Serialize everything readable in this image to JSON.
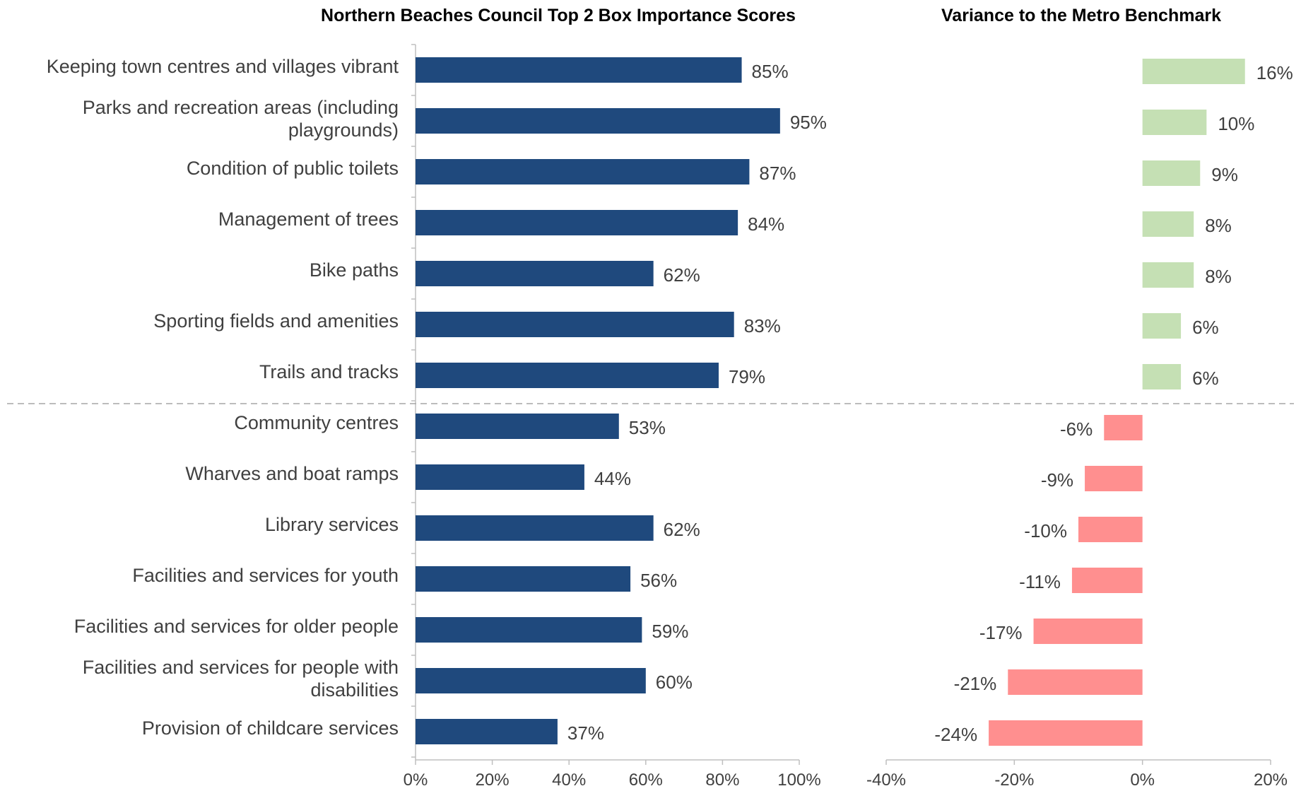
{
  "colors": {
    "importance_bar": "#1f497d",
    "variance_positive": "#c5e0b4",
    "variance_negative": "#ff8f8f",
    "axis": "#bfbfbf",
    "divider": "#a6a6a6",
    "text": "#404040"
  },
  "chart_data": [
    {
      "type": "bar",
      "orientation": "horizontal",
      "title": "Northern Beaches Council Top 2 Box Importance Scores",
      "categories": [
        "Keeping town centres and villages vibrant",
        "Parks and recreation areas (including playgrounds)",
        "Condition of public toilets",
        "Management of trees",
        "Bike paths",
        "Sporting fields and amenities",
        "Trails and tracks",
        "Community centres",
        "Wharves and boat ramps",
        "Library services",
        "Facilities and services for youth",
        "Facilities and services for older people",
        "Facilities and services for people with disabilities",
        "Provision of childcare services"
      ],
      "category_lines": [
        [
          "Keeping town centres and villages vibrant"
        ],
        [
          "Parks and recreation areas (including",
          "playgrounds)"
        ],
        [
          "Condition of public toilets"
        ],
        [
          "Management of trees"
        ],
        [
          "Bike paths"
        ],
        [
          "Sporting fields and amenities"
        ],
        [
          "Trails and tracks"
        ],
        [
          "Community centres"
        ],
        [
          "Wharves and boat ramps"
        ],
        [
          "Library services"
        ],
        [
          "Facilities and services for youth"
        ],
        [
          "Facilities and services for older people"
        ],
        [
          "Facilities and services for people with",
          "disabilities"
        ],
        [
          "Provision of childcare services"
        ]
      ],
      "values": [
        85,
        95,
        87,
        84,
        62,
        83,
        79,
        53,
        44,
        62,
        56,
        59,
        60,
        37
      ],
      "value_labels": [
        "85%",
        "95%",
        "87%",
        "84%",
        "62%",
        "83%",
        "79%",
        "53%",
        "44%",
        "62%",
        "56%",
        "59%",
        "60%",
        "37%"
      ],
      "xlim": [
        0,
        100
      ],
      "xticks": [
        0,
        20,
        40,
        60,
        80,
        100
      ],
      "xtick_labels": [
        "0%",
        "20%",
        "40%",
        "60%",
        "80%",
        "100%"
      ],
      "grid": false
    },
    {
      "type": "bar",
      "orientation": "horizontal",
      "title": "Variance to the Metro Benchmark",
      "values": [
        16,
        10,
        9,
        8,
        8,
        6,
        6,
        -6,
        -9,
        -10,
        -11,
        -17,
        -21,
        -24
      ],
      "value_labels": [
        "16%",
        "10%",
        "9%",
        "8%",
        "8%",
        "6%",
        "6%",
        "-6%",
        "-9%",
        "-10%",
        "-11%",
        "-17%",
        "-21%",
        "-24%"
      ],
      "xlim": [
        -40,
        20
      ],
      "xticks": [
        -40,
        -20,
        0,
        20
      ],
      "xtick_labels": [
        "-40%",
        "-20%",
        "0%",
        "20%"
      ],
      "grid": false
    }
  ]
}
